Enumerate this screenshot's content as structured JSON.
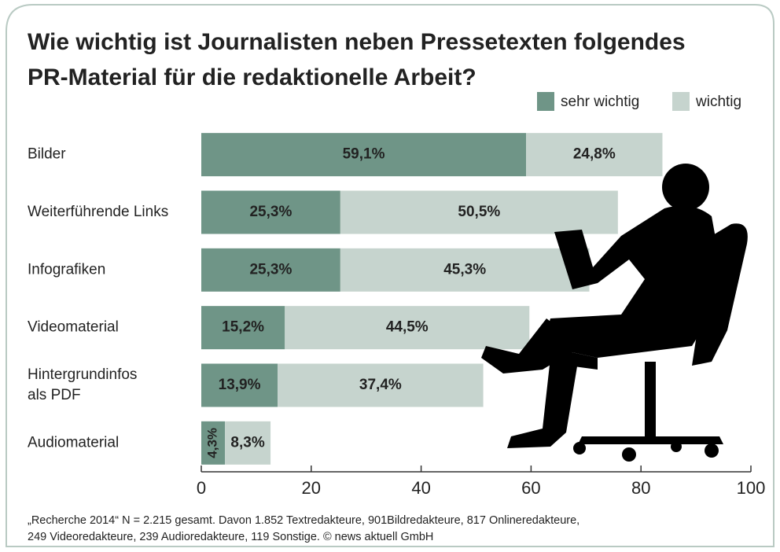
{
  "chart_data": {
    "type": "stacked-barh",
    "title": "Wie wichtig ist Journalisten neben Pressetexten folgendes\nPR-Material für die redaktionelle Arbeit?",
    "categories": [
      "Bilder",
      "Weiterführende Links",
      "Infografiken",
      "Videomaterial",
      "Hintergrundinfos\nals PDF",
      "Audiomaterial"
    ],
    "series": [
      {
        "name": "sehr wichtig",
        "color": "#6f9587",
        "values": [
          59.1,
          25.3,
          25.3,
          15.2,
          13.9,
          4.3
        ],
        "value_labels": [
          "59,1%",
          "25,3%",
          "25,3%",
          "15,2%",
          "13,9%",
          "4,3%"
        ]
      },
      {
        "name": "wichtig",
        "color": "#c6d4ce",
        "values": [
          24.8,
          50.5,
          45.3,
          44.5,
          37.4,
          8.3
        ],
        "value_labels": [
          "24,8%",
          "50,5%",
          "45,3%",
          "44,5%",
          "37,4%",
          "8,3%"
        ]
      }
    ],
    "xlim": [
      0,
      100
    ],
    "xticks": [
      0,
      20,
      40,
      60,
      80,
      100
    ],
    "legend": "top-right",
    "note": [
      "„Recherche 2014“ N = 2.215 gesamt. Davon 1.852 Textredakteure, 901Bildredakteure, 817 Onlineredakteure,",
      "249 Videoredakteure, 239 Audioredakteure, 119 Sonstige. © news aktuell GmbH"
    ]
  }
}
